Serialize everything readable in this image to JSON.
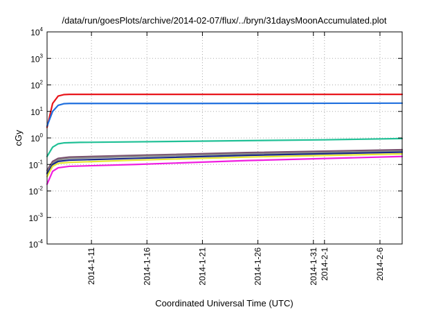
{
  "chart_data": {
    "type": "line",
    "title": "/data/run/goesPlots/archive/2014-02-07/flux/../bryn/31daysMoonAccumulated.plot",
    "xlabel": "Coordinated Universal Time (UTC)",
    "ylabel": "cGy",
    "y_scale": "log",
    "ylim": [
      0.0001,
      10000
    ],
    "xlim": [
      "2014-01-07",
      "2014-02-08"
    ],
    "grid": true,
    "legend": "none",
    "y_ticks": [
      {
        "base": "10",
        "exp": "-4",
        "value": 0.0001
      },
      {
        "base": "10",
        "exp": "-3",
        "value": 0.001
      },
      {
        "base": "10",
        "exp": "-2",
        "value": 0.01
      },
      {
        "base": "10",
        "exp": "-1",
        "value": 0.1
      },
      {
        "base": "10",
        "exp": "0",
        "value": 1
      },
      {
        "base": "10",
        "exp": "1",
        "value": 10
      },
      {
        "base": "10",
        "exp": "2",
        "value": 100
      },
      {
        "base": "10",
        "exp": "3",
        "value": 1000
      },
      {
        "base": "10",
        "exp": "4",
        "value": 10000
      }
    ],
    "x_ticks": [
      {
        "label": "2014-1-11",
        "date": "2014-01-11"
      },
      {
        "label": "2014-1-16",
        "date": "2014-01-16"
      },
      {
        "label": "2014-1-21",
        "date": "2014-01-21"
      },
      {
        "label": "2014-1-26",
        "date": "2014-01-26"
      },
      {
        "label": "2014-1-31",
        "date": "2014-01-31"
      },
      {
        "label": "2014-2-1",
        "date": "2014-02-01"
      },
      {
        "label": "2014-2-6",
        "date": "2014-02-06"
      }
    ],
    "series": [
      {
        "color": "#e8141a",
        "points": [
          [
            "2014-01-07",
            2.5
          ],
          [
            "2014-01-07T12:00",
            20
          ],
          [
            "2014-01-08",
            38
          ],
          [
            "2014-01-08T12:00",
            43
          ],
          [
            "2014-01-09",
            44
          ],
          [
            "2014-01-20",
            44
          ],
          [
            "2014-02-08",
            44
          ]
        ]
      },
      {
        "color": "#1f6fde",
        "points": [
          [
            "2014-01-07",
            2.8
          ],
          [
            "2014-01-07T12:00",
            10
          ],
          [
            "2014-01-08",
            17
          ],
          [
            "2014-01-08T12:00",
            19.5
          ],
          [
            "2014-01-09",
            20
          ],
          [
            "2014-01-20",
            20
          ],
          [
            "2014-02-08",
            20.5
          ]
        ]
      },
      {
        "color": "#20c096",
        "points": [
          [
            "2014-01-07",
            0.2
          ],
          [
            "2014-01-07T12:00",
            0.45
          ],
          [
            "2014-01-08",
            0.6
          ],
          [
            "2014-01-08T12:00",
            0.65
          ],
          [
            "2014-01-10",
            0.68
          ],
          [
            "2014-01-20",
            0.75
          ],
          [
            "2014-02-01",
            0.85
          ],
          [
            "2014-02-08",
            0.95
          ]
        ]
      },
      {
        "color": "#7a4f6e",
        "points": [
          [
            "2014-01-07",
            0.06
          ],
          [
            "2014-01-07T12:00",
            0.13
          ],
          [
            "2014-01-08",
            0.17
          ],
          [
            "2014-01-09",
            0.19
          ],
          [
            "2014-01-15",
            0.22
          ],
          [
            "2014-01-25",
            0.28
          ],
          [
            "2014-02-08",
            0.36
          ]
        ]
      },
      {
        "color": "#8a8a8a",
        "points": [
          [
            "2014-01-07",
            0.05
          ],
          [
            "2014-01-07T12:00",
            0.11
          ],
          [
            "2014-01-08",
            0.15
          ],
          [
            "2014-01-09",
            0.17
          ],
          [
            "2014-01-15",
            0.2
          ],
          [
            "2014-01-25",
            0.25
          ],
          [
            "2014-02-08",
            0.32
          ]
        ]
      },
      {
        "color": "#1a2a8a",
        "points": [
          [
            "2014-01-07",
            0.045
          ],
          [
            "2014-01-07T12:00",
            0.1
          ],
          [
            "2014-01-08",
            0.13
          ],
          [
            "2014-01-09",
            0.145
          ],
          [
            "2014-01-15",
            0.17
          ],
          [
            "2014-01-25",
            0.22
          ],
          [
            "2014-02-08",
            0.29
          ]
        ]
      },
      {
        "color": "#e6e632",
        "points": [
          [
            "2014-01-07",
            0.035
          ],
          [
            "2014-01-07T12:00",
            0.085
          ],
          [
            "2014-01-08",
            0.11
          ],
          [
            "2014-01-09",
            0.12
          ],
          [
            "2014-01-15",
            0.145
          ],
          [
            "2014-01-25",
            0.19
          ],
          [
            "2014-02-08",
            0.25
          ]
        ]
      },
      {
        "color": "#f01ee0",
        "points": [
          [
            "2014-01-07",
            0.018
          ],
          [
            "2014-01-07T12:00",
            0.055
          ],
          [
            "2014-01-08",
            0.075
          ],
          [
            "2014-01-09",
            0.085
          ],
          [
            "2014-01-15",
            0.1
          ],
          [
            "2014-01-25",
            0.14
          ],
          [
            "2014-02-08",
            0.2
          ]
        ]
      }
    ]
  }
}
